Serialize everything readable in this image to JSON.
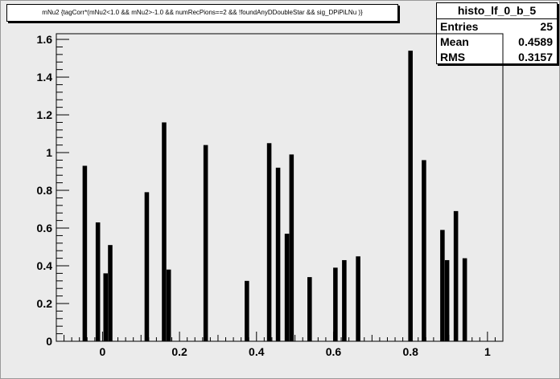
{
  "title": "mNu2  {tagCorr*(mNu2<1.0 && mNu2>-1.0 && numRecPions==2 && !foundAnyDDoubleStar && sig_DPiPiLNu )}",
  "stats": {
    "name": "histo_lf_0_b_5",
    "entries_label": "Entries",
    "entries_value": "25",
    "mean_label": "Mean",
    "mean_value": "0.4589",
    "rms_label": "RMS",
    "rms_value": "0.3157"
  },
  "chart_data": {
    "type": "bar",
    "title": "mNu2  {tagCorr*(mNu2<1.0 && mNu2>-1.0 && numRecPions==2 && !foundAnyDDoubleStar && sig_DPiPiLNu )}",
    "xlabel": "",
    "ylabel": "",
    "xlim": [
      -0.12,
      1.04
    ],
    "ylim": [
      0,
      1.63
    ],
    "grid": false,
    "legend": "none",
    "bar_color": "#000000",
    "x_ticks": [
      0,
      0.2,
      0.4,
      0.6,
      0.8,
      1
    ],
    "x_tick_labels": [
      "0",
      "0.2",
      "0.4",
      "0.6",
      "0.8",
      "1"
    ],
    "y_ticks": [
      0,
      0.2,
      0.4,
      0.6,
      0.8,
      1,
      1.2,
      1.4,
      1.6
    ],
    "y_tick_labels": [
      "0",
      "0.2",
      "0.4",
      "0.6",
      "0.8",
      "1",
      "1.2",
      "1.4",
      "1.6"
    ],
    "bin_width": 0.0116,
    "bins": [
      {
        "x": -0.046,
        "y": 0.93
      },
      {
        "x": -0.012,
        "y": 0.63
      },
      {
        "x": 0.008,
        "y": 0.36
      },
      {
        "x": 0.02,
        "y": 0.51
      },
      {
        "x": 0.115,
        "y": 0.79
      },
      {
        "x": 0.16,
        "y": 1.16
      },
      {
        "x": 0.172,
        "y": 0.38
      },
      {
        "x": 0.268,
        "y": 1.04
      },
      {
        "x": 0.375,
        "y": 0.32
      },
      {
        "x": 0.433,
        "y": 1.05
      },
      {
        "x": 0.456,
        "y": 0.92
      },
      {
        "x": 0.479,
        "y": 0.57
      },
      {
        "x": 0.491,
        "y": 0.99
      },
      {
        "x": 0.538,
        "y": 0.34
      },
      {
        "x": 0.605,
        "y": 0.39
      },
      {
        "x": 0.628,
        "y": 0.43
      },
      {
        "x": 0.664,
        "y": 0.45
      },
      {
        "x": 0.8,
        "y": 1.54
      },
      {
        "x": 0.835,
        "y": 0.96
      },
      {
        "x": 0.883,
        "y": 0.59
      },
      {
        "x": 0.895,
        "y": 0.43
      },
      {
        "x": 0.918,
        "y": 0.69
      },
      {
        "x": 0.941,
        "y": 0.44
      },
      {
        "x": 1.038,
        "y": 0.0
      }
    ]
  }
}
